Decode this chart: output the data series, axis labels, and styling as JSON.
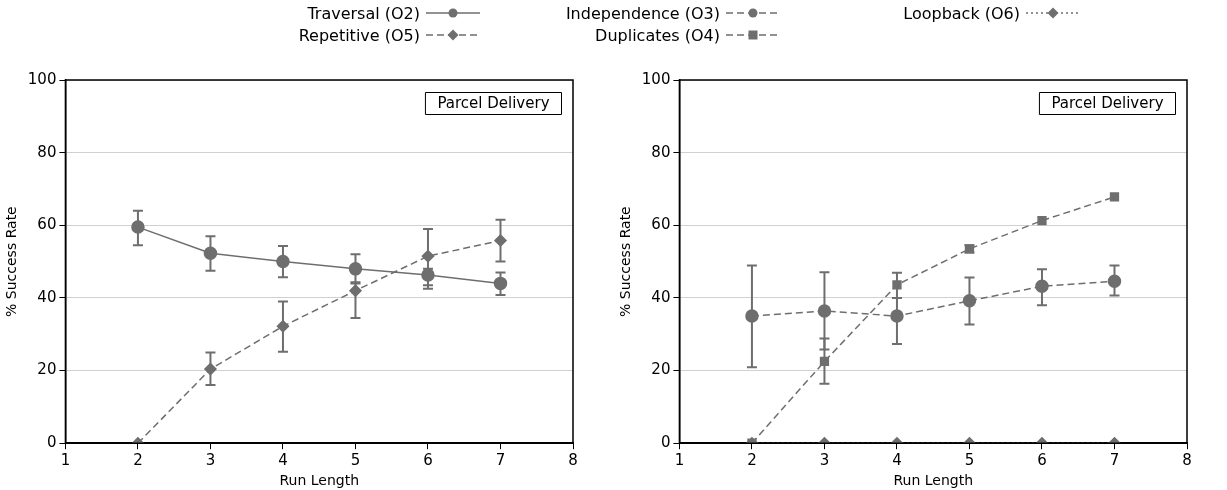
{
  "chart_data": [
    {
      "type": "line",
      "xlabel": "Run Length",
      "ylabel": "% Success Rate",
      "x": [
        2,
        3,
        4,
        5,
        6,
        7
      ],
      "xlim": [
        1,
        8
      ],
      "xticks": [
        1,
        2,
        3,
        4,
        5,
        6,
        7,
        8
      ],
      "ylim": [
        0,
        100
      ],
      "yticks": [
        0,
        20,
        40,
        60,
        80,
        100
      ],
      "grid": "y",
      "legend": "top",
      "annotations": [
        "Parcel Delivery"
      ],
      "series": [
        {
          "name": "Traversal (O2)",
          "color": "#6e6e6e",
          "marker": "circle",
          "line_style": "solid",
          "values": [
            59.5,
            52.3,
            50,
            48,
            46.3,
            44
          ],
          "errors": [
            [
              54.5,
              64
            ],
            [
              47.5,
              57
            ],
            [
              45.7,
              54.3
            ],
            [
              44,
              52
            ],
            [
              42.5,
              48
            ],
            [
              40.8,
              47
            ]
          ]
        },
        {
          "name": "Repetitive (O5)",
          "color": "#6e6e6e",
          "marker": "diamond",
          "line_style": "dashed",
          "values": [
            0,
            20.4,
            32.2,
            42,
            51.5,
            55.8
          ],
          "errors": [
            null,
            [
              16,
              25
            ],
            [
              25.2,
              39
            ],
            [
              34.5,
              44.3
            ],
            [
              43.5,
              59
            ],
            [
              50,
              61.5
            ]
          ]
        }
      ]
    },
    {
      "type": "line",
      "xlabel": "Run Length",
      "ylabel": "% Success Rate",
      "x": [
        2,
        3,
        4,
        5,
        6,
        7
      ],
      "xlim": [
        1,
        8
      ],
      "xticks": [
        1,
        2,
        3,
        4,
        5,
        6,
        7,
        8
      ],
      "ylim": [
        0,
        100
      ],
      "yticks": [
        0,
        20,
        40,
        60,
        80,
        100
      ],
      "grid": "y",
      "legend": "top",
      "annotations": [
        "Parcel Delivery"
      ],
      "series": [
        {
          "name": "Independence (O3)",
          "color": "#6e6e6e",
          "marker": "circle",
          "line_style": "dashed",
          "values": [
            35,
            36.4,
            35,
            39.2,
            43.2,
            44.6
          ],
          "errors": [
            [
              20.9,
              48.9
            ],
            [
              25.8,
              47.1
            ],
            [
              27.3,
              40
            ],
            [
              32.7,
              45.6
            ],
            [
              38,
              47.9
            ],
            [
              40.7,
              48.9
            ]
          ]
        },
        {
          "name": "Duplicates (O4)",
          "color": "#6e6e6e",
          "marker": "square",
          "line_style": "dashed",
          "values": [
            0,
            22.5,
            43.6,
            53.5,
            61.3,
            67.8
          ],
          "errors": [
            null,
            [
              16.4,
              28.8
            ],
            [
              40,
              46.9
            ],
            [
              52.5,
              54.5
            ],
            null,
            null
          ]
        },
        {
          "name": "Loopback (O6)",
          "color": "#6e6e6e",
          "marker": "diamond",
          "line_style": "dotted",
          "values": [
            0,
            0,
            0,
            0,
            0,
            0
          ]
        }
      ]
    }
  ]
}
